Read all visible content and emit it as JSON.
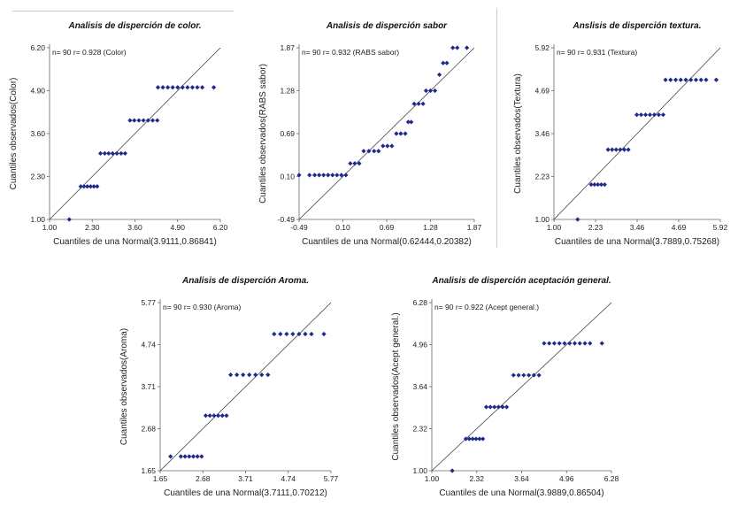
{
  "chart_data": [
    {
      "type": "scatter",
      "title": "Analisis de disperción de color.",
      "annotation": "n= 90 r= 0.928 (Color)",
      "xlabel": "Cuantiles de una Normal(3.9111,0.86841)",
      "ylabel": "Cuantiles observados(Color)",
      "xlim": [
        1.0,
        6.2
      ],
      "ylim": [
        1.0,
        6.2
      ],
      "xticks": [
        "1.00",
        "2.30",
        "3.60",
        "4.90",
        "6.20"
      ],
      "yticks": [
        "1.00",
        "2.30",
        "3.60",
        "4.90",
        "6.20"
      ],
      "grid": false,
      "reference_line": true,
      "marker_color": "#1f2a8a",
      "groups": [
        {
          "y": 1,
          "x": [
            1.6
          ]
        },
        {
          "y": 2,
          "x": [
            1.95,
            2.05,
            2.15,
            2.25,
            2.35,
            2.45
          ]
        },
        {
          "y": 3,
          "x": [
            2.55,
            2.68,
            2.8,
            2.92,
            3.05,
            3.18,
            3.3
          ]
        },
        {
          "y": 4,
          "x": [
            3.45,
            3.58,
            3.72,
            3.86,
            4.0,
            4.14,
            4.28
          ]
        },
        {
          "y": 5,
          "x": [
            4.3,
            4.45,
            4.6,
            4.75,
            4.9,
            5.05,
            5.2,
            5.35,
            5.5,
            5.65,
            6.0
          ]
        }
      ]
    },
    {
      "type": "scatter",
      "title": "Analisis de disperción sabor",
      "annotation": "n= 90 r= 0.932 (RABS sabor)",
      "xlabel": "Cuantiles de una Normal(0.62444,0.20382)",
      "ylabel": "Cuantiles observados(RABS sabor)",
      "xlim": [
        -0.49,
        1.87
      ],
      "ylim": [
        -0.49,
        1.87
      ],
      "xticks": [
        "-0.49",
        "0.10",
        "0.69",
        "1.28",
        "1.87"
      ],
      "yticks": [
        "-0.49",
        "0.10",
        "0.69",
        "1.28",
        "1.87"
      ],
      "grid": false,
      "reference_line": true,
      "marker_color": "#1f2a8a",
      "groups": [
        {
          "y": 0.12,
          "x": [
            -0.49,
            -0.35,
            -0.28,
            -0.22,
            -0.16,
            -0.1,
            -0.04,
            0.02,
            0.08,
            0.14
          ]
        },
        {
          "y": 0.28,
          "x": [
            0.2,
            0.26,
            0.32
          ]
        },
        {
          "y": 0.45,
          "x": [
            0.38,
            0.45,
            0.52,
            0.58
          ]
        },
        {
          "y": 0.52,
          "x": [
            0.64,
            0.7,
            0.76
          ]
        },
        {
          "y": 0.69,
          "x": [
            0.82,
            0.88,
            0.94
          ]
        },
        {
          "y": 0.85,
          "x": [
            0.98,
            1.02
          ]
        },
        {
          "y": 1.1,
          "x": [
            1.06,
            1.12,
            1.18
          ]
        },
        {
          "y": 1.28,
          "x": [
            1.22,
            1.28,
            1.34
          ]
        },
        {
          "y": 1.5,
          "x": [
            1.4
          ]
        },
        {
          "y": 1.66,
          "x": [
            1.45,
            1.5
          ]
        },
        {
          "y": 1.87,
          "x": [
            1.58,
            1.64,
            1.77
          ]
        }
      ]
    },
    {
      "type": "scatter",
      "title": "Anslisis de disperción textura.",
      "annotation": "n= 90 r= 0.931 (Textura)",
      "xlabel": "Cuantiles de una Normal(3.7889,0.75268)",
      "ylabel": "Cuantiles observados(Textura)",
      "xlim": [
        1.0,
        5.92
      ],
      "ylim": [
        1.0,
        5.92
      ],
      "xticks": [
        "1.00",
        "2.23",
        "3.46",
        "4.69",
        "5.92"
      ],
      "yticks": [
        "1.00",
        "2.23",
        "3.46",
        "4.69",
        "5.92"
      ],
      "grid": false,
      "reference_line": true,
      "marker_color": "#1f2a8a",
      "groups": [
        {
          "y": 1,
          "x": [
            1.7
          ]
        },
        {
          "y": 2,
          "x": [
            2.1,
            2.2,
            2.3,
            2.4,
            2.5
          ]
        },
        {
          "y": 3,
          "x": [
            2.6,
            2.72,
            2.84,
            2.96,
            3.08,
            3.2
          ]
        },
        {
          "y": 4,
          "x": [
            3.45,
            3.58,
            3.71,
            3.84,
            3.97,
            4.1,
            4.23
          ]
        },
        {
          "y": 5,
          "x": [
            4.3,
            4.45,
            4.6,
            4.75,
            4.9,
            5.05,
            5.2,
            5.35,
            5.5,
            5.8
          ]
        }
      ]
    },
    {
      "type": "scatter",
      "title": "Analisis de disperción Aroma.",
      "annotation": "n= 90 r= 0.930 (Aroma)",
      "xlabel": "Cuantiles de una Normal(3.7111,0.70212)",
      "ylabel": "Cuantiles observados(Aroma)",
      "xlim": [
        1.65,
        5.77
      ],
      "ylim": [
        1.65,
        5.77
      ],
      "xticks": [
        "1.65",
        "2.68",
        "3.71",
        "4.74",
        "5.77"
      ],
      "yticks": [
        "1.65",
        "2.68",
        "3.71",
        "4.74",
        "5.77"
      ],
      "grid": false,
      "reference_line": true,
      "marker_color": "#1f2a8a",
      "groups": [
        {
          "y": 2,
          "x": [
            1.9,
            2.15,
            2.25,
            2.35,
            2.45,
            2.55,
            2.65
          ]
        },
        {
          "y": 3,
          "x": [
            2.75,
            2.85,
            2.95,
            3.05,
            3.15,
            3.25
          ]
        },
        {
          "y": 4,
          "x": [
            3.35,
            3.5,
            3.65,
            3.8,
            3.95,
            4.1,
            4.25
          ]
        },
        {
          "y": 5,
          "x": [
            4.4,
            4.55,
            4.7,
            4.85,
            5.0,
            5.15,
            5.3,
            5.6
          ]
        }
      ]
    },
    {
      "type": "scatter",
      "title": "Analisis de disperción aceptación general.",
      "annotation": "n= 90 r= 0.922 (Acept general.)",
      "xlabel": "Cuantiles de una Normal(3.9889,0.86504)",
      "ylabel": "Cuantiles observados(Acept general.)",
      "xlim": [
        1.0,
        6.28
      ],
      "ylim": [
        1.0,
        6.28
      ],
      "xticks": [
        "1.00",
        "2.32",
        "3.64",
        "4.96",
        "6.28"
      ],
      "yticks": [
        "1.00",
        "2.32",
        "3.64",
        "4.96",
        "6.28"
      ],
      "grid": false,
      "reference_line": true,
      "marker_color": "#1f2a8a",
      "groups": [
        {
          "y": 1,
          "x": [
            1.6
          ]
        },
        {
          "y": 2,
          "x": [
            2.0,
            2.1,
            2.2,
            2.3,
            2.4,
            2.5
          ]
        },
        {
          "y": 3,
          "x": [
            2.6,
            2.72,
            2.84,
            2.96,
            3.08,
            3.2
          ]
        },
        {
          "y": 4,
          "x": [
            3.4,
            3.55,
            3.7,
            3.85,
            4.0,
            4.15
          ]
        },
        {
          "y": 5,
          "x": [
            4.3,
            4.45,
            4.6,
            4.75,
            4.9,
            5.05,
            5.2,
            5.35,
            5.5,
            5.65,
            6.0
          ]
        }
      ]
    }
  ]
}
